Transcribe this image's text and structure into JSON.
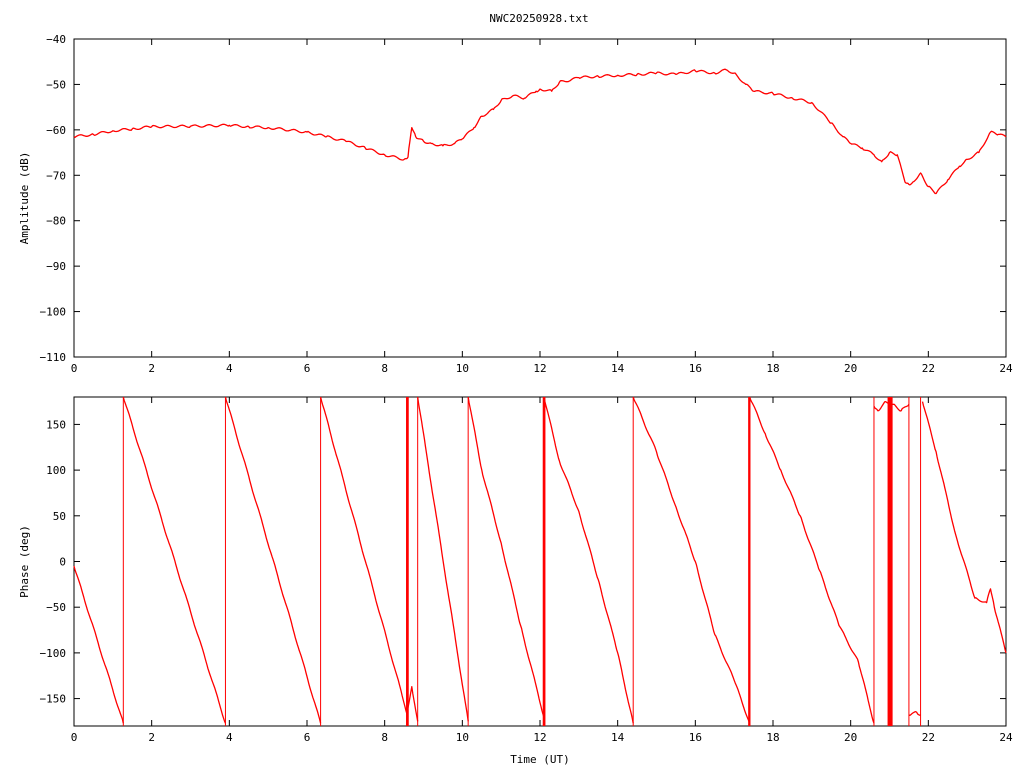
{
  "title": "NWC20250928.txt",
  "colors": {
    "series": "#ff0000",
    "axes": "#000000",
    "background": "#ffffff"
  },
  "chart_data": [
    {
      "type": "line",
      "ylabel": "Amplitude (dB)",
      "xlabel": "",
      "xlim": [
        0,
        24
      ],
      "ylim": [
        -110,
        -40
      ],
      "x_ticks": [
        0,
        2,
        4,
        6,
        8,
        10,
        12,
        14,
        16,
        18,
        20,
        22,
        24
      ],
      "y_ticks": [
        -110,
        -100,
        -90,
        -80,
        -70,
        -60,
        -50,
        -40
      ],
      "grid": false,
      "series": [
        {
          "x": [
            0,
            0.5,
            1.0,
            1.5,
            2.0,
            3.0,
            4.0,
            4.5,
            5.0,
            6.0,
            6.5,
            7.0,
            7.5,
            8.0,
            8.5,
            8.6,
            8.65,
            8.7,
            8.8,
            9.0,
            9.2,
            9.5,
            9.8,
            10.0,
            10.3,
            10.5,
            10.8,
            11.0,
            11.3,
            11.6,
            11.9,
            12.0,
            12.3,
            12.5,
            12.8,
            13.0,
            13.5,
            14.0,
            14.5,
            15.0,
            15.5,
            16.0,
            16.5,
            16.8,
            17.0,
            17.3,
            17.5,
            18.0,
            18.5,
            19.0,
            19.5,
            19.8,
            20.0,
            20.3,
            20.6,
            20.8,
            21.0,
            21.2,
            21.4,
            21.5,
            21.6,
            21.8,
            22.0,
            22.2,
            22.5,
            22.8,
            23.0,
            23.3,
            23.6,
            23.8,
            24.0
          ],
          "y": [
            -61.5,
            -61.0,
            -60.2,
            -59.8,
            -59.3,
            -59.2,
            -59.0,
            -59.3,
            -59.5,
            -60.5,
            -61.5,
            -62.5,
            -64.0,
            -65.5,
            -66.5,
            -66.0,
            -62.5,
            -59.5,
            -61.5,
            -62.5,
            -63.0,
            -63.5,
            -63.0,
            -62.0,
            -59.5,
            -57.0,
            -55.5,
            -53.5,
            -52.5,
            -53.0,
            -51.5,
            -51.0,
            -51.5,
            -49.5,
            -49.0,
            -48.5,
            -48.2,
            -48.0,
            -47.8,
            -47.5,
            -47.8,
            -47.0,
            -47.5,
            -46.8,
            -47.5,
            -50.0,
            -51.5,
            -52.0,
            -53.0,
            -54.0,
            -58.5,
            -61.5,
            -63.0,
            -64.0,
            -65.5,
            -67.0,
            -65.0,
            -65.5,
            -71.5,
            -72.0,
            -71.5,
            -69.5,
            -72.5,
            -74.0,
            -71.0,
            -68.0,
            -66.5,
            -65.0,
            -60.5,
            -61.0,
            -61.5
          ]
        }
      ]
    },
    {
      "type": "line",
      "ylabel": "Phase (deg)",
      "xlabel": "Time (UT)",
      "xlim": [
        0,
        24
      ],
      "ylim": [
        -180,
        180
      ],
      "x_ticks": [
        0,
        2,
        4,
        6,
        8,
        10,
        12,
        14,
        16,
        18,
        20,
        22,
        24
      ],
      "y_ticks": [
        -150,
        -100,
        -50,
        0,
        50,
        100,
        150
      ],
      "grid": false,
      "series": [
        {
          "x": [
            0,
            1.27
          ],
          "y": [
            -5,
            -177
          ]
        },
        {
          "x": [
            1.27,
            3.9
          ],
          "y": [
            180,
            -177
          ]
        },
        {
          "x": [
            3.9,
            6.35
          ],
          "y": [
            180,
            -177
          ]
        },
        {
          "x": [
            6.35,
            8.6
          ],
          "y": [
            180,
            -170
          ]
        },
        {
          "x": [
            8.6,
            8.7,
            8.85
          ],
          "y": [
            -160,
            -137,
            -175
          ]
        },
        {
          "x": [
            8.85,
            10.15
          ],
          "y": [
            180,
            -175
          ]
        },
        {
          "x": [
            10.15,
            10.5,
            11.0,
            11.5,
            12.1
          ],
          "y": [
            180,
            100,
            20,
            -70,
            -170
          ]
        },
        {
          "x": [
            12.1,
            12.5,
            13.0,
            13.5,
            14.0,
            14.4
          ],
          "y": [
            180,
            110,
            55,
            -20,
            -100,
            -177
          ]
        },
        {
          "x": [
            14.4,
            15.0,
            15.5,
            16.0,
            16.5,
            17.0,
            17.4
          ],
          "y": [
            180,
            120,
            60,
            0,
            -80,
            -130,
            -177
          ]
        },
        {
          "x": [
            17.4,
            17.8,
            18.2,
            18.7,
            19.2,
            19.7,
            20.2,
            20.6
          ],
          "y": [
            180,
            140,
            100,
            50,
            -10,
            -70,
            -110,
            -177
          ]
        },
        {
          "x": [
            20.6,
            20.7,
            20.9,
            21.1,
            21.3,
            21.5
          ],
          "y": [
            170,
            165,
            175,
            172,
            165,
            172
          ]
        },
        {
          "x": [
            21.5,
            21.7,
            21.8
          ],
          "y": [
            -168,
            -165,
            -168
          ]
        },
        {
          "x": [
            21.85,
            22.2,
            22.7,
            23.2,
            23.5,
            23.6,
            23.7,
            24.0
          ],
          "y": [
            175,
            120,
            30,
            -40,
            -45,
            -30,
            -50,
            -100
          ]
        }
      ],
      "wrap_lines_x": [
        1.27,
        3.9,
        6.35,
        8.85,
        10.15,
        12.1,
        14.4,
        17.4,
        20.6,
        21.5,
        21.8
      ],
      "dense_bands": [
        {
          "x0": 8.55,
          "x1": 8.62
        },
        {
          "x0": 12.07,
          "x1": 12.14
        },
        {
          "x0": 17.36,
          "x1": 17.42
        },
        {
          "x0": 20.95,
          "x1": 21.08
        }
      ]
    }
  ]
}
